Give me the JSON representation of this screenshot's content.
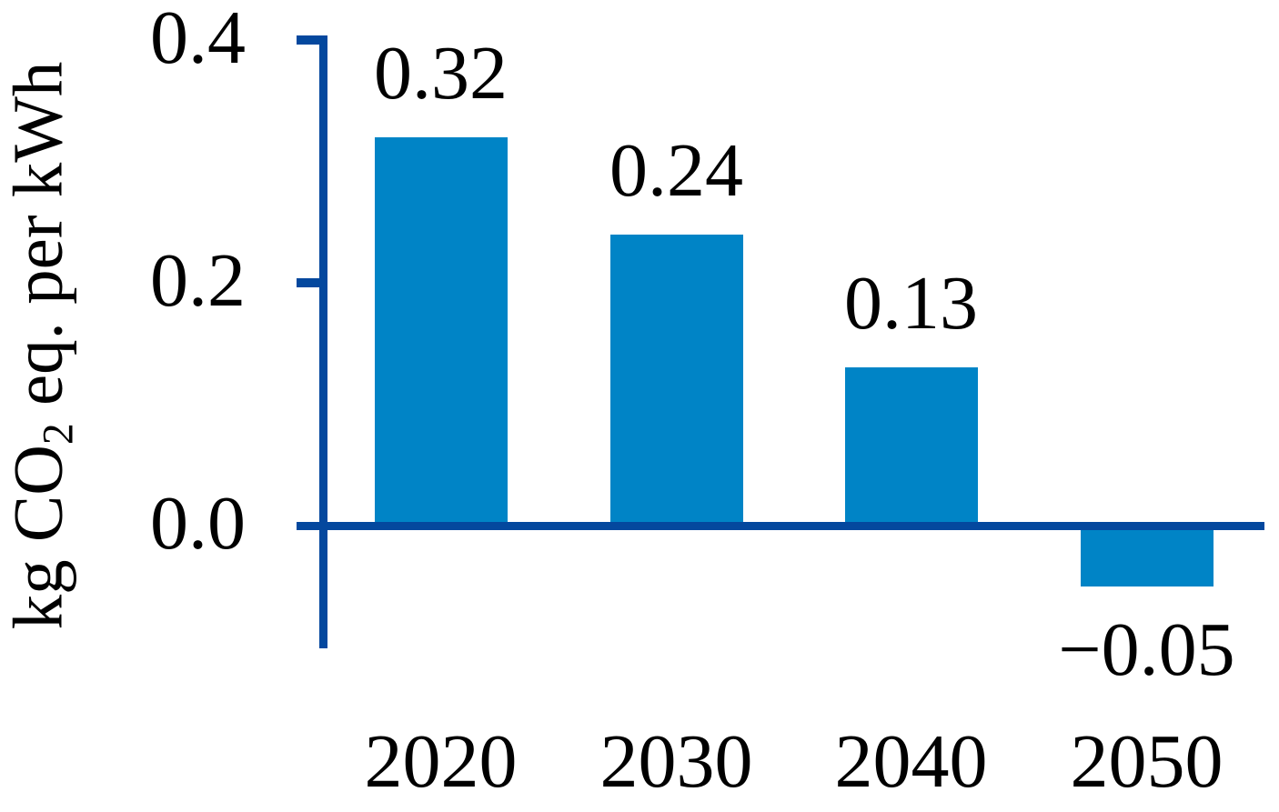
{
  "figure": {
    "background": "#ffffff"
  },
  "chart_data": {
    "type": "bar",
    "title": "",
    "categories": [
      "2020",
      "2030",
      "2040",
      "2050"
    ],
    "values": [
      0.32,
      0.24,
      0.13,
      -0.05
    ],
    "value_labels": [
      "0.32",
      "0.24",
      "0.13",
      "−0.05"
    ],
    "xlabel": "",
    "ylabel": "kg CO2 eq. per kWh",
    "ylabel_prefix": "kg CO",
    "ylabel_sub": "2",
    "ylabel_suffix": " eq. per kWh",
    "yticks": [
      {
        "value": 0.4,
        "label": "0.4"
      },
      {
        "value": 0.2,
        "label": "0.2"
      },
      {
        "value": 0.0,
        "label": "0.0"
      }
    ],
    "ylim": [
      -0.12,
      0.4
    ],
    "grid": false,
    "legend": null,
    "bar_color": "#0084C6",
    "axis_color": "#04489E",
    "text_color": "#000000"
  }
}
